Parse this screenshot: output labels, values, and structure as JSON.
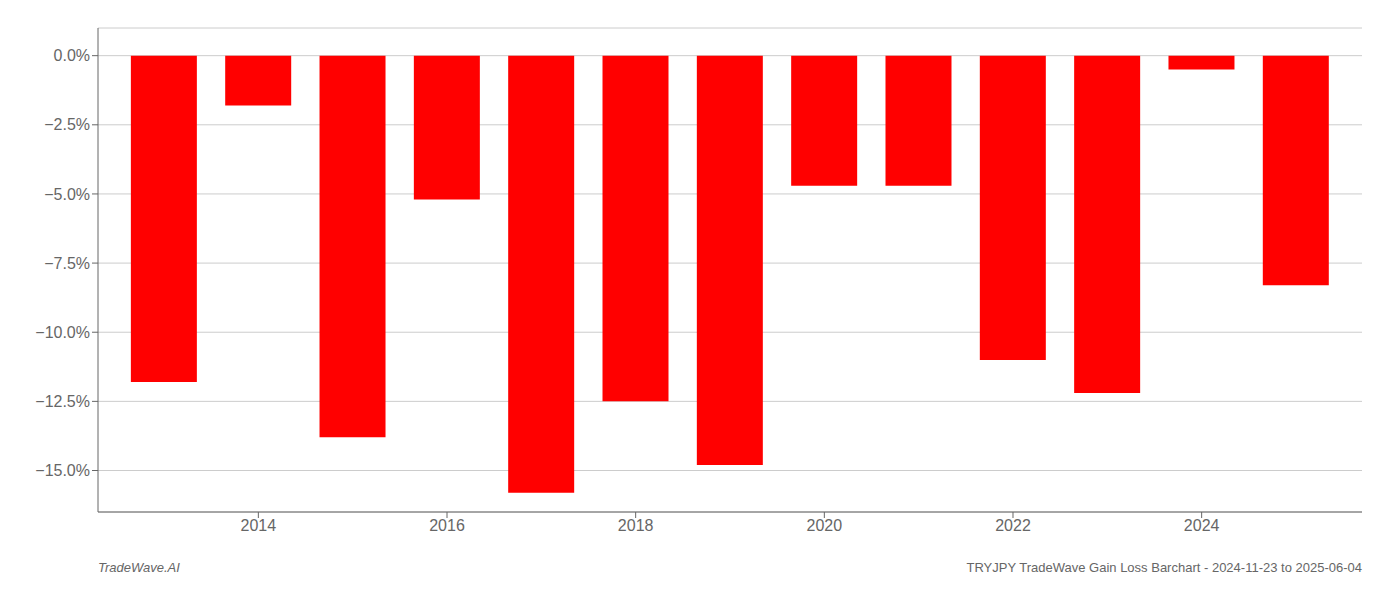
{
  "chart_data": {
    "type": "bar",
    "x": [
      2013,
      2014,
      2015,
      2016,
      2017,
      2018,
      2019,
      2020,
      2021,
      2022,
      2023,
      2024,
      2025
    ],
    "values": [
      -11.8,
      -1.8,
      -13.8,
      -5.2,
      -15.8,
      -12.5,
      -14.8,
      -4.7,
      -4.7,
      -11.0,
      -12.2,
      -0.5,
      -8.3
    ],
    "color": "#ff0000",
    "xlim": [
      2012.3,
      2025.7
    ],
    "xticks": [
      2014,
      2016,
      2018,
      2020,
      2022,
      2024
    ],
    "ylim": [
      -16.5,
      1.0
    ],
    "yticks": [
      {
        "value": 0.0,
        "label": "0.0%"
      },
      {
        "value": -2.5,
        "label": "−2.5%"
      },
      {
        "value": -5.0,
        "label": "−5.0%"
      },
      {
        "value": -7.5,
        "label": "−7.5%"
      },
      {
        "value": -10.0,
        "label": "−10.0%"
      },
      {
        "value": -12.5,
        "label": "−12.5%"
      },
      {
        "value": -15.0,
        "label": "−15.0%"
      }
    ],
    "grid": true,
    "annotations": [
      "TradeWave.AI",
      "TRYJPY TradeWave Gain Loss Barchart - 2024-11-23 to 2025-06-04"
    ]
  }
}
